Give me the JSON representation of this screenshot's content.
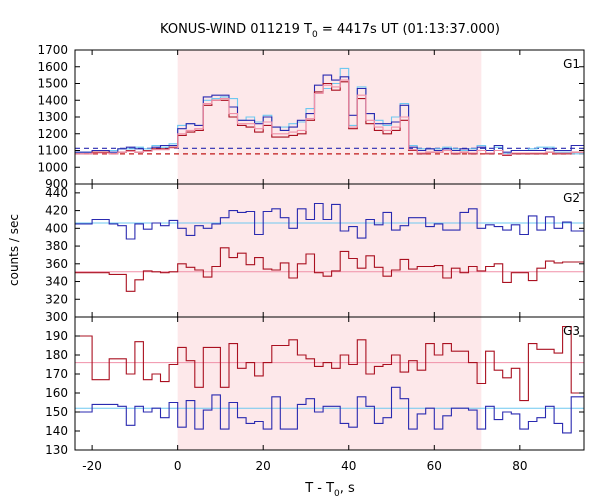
{
  "chart_data": {
    "type": "line",
    "title": "KONUS-WIND 011219 T",
    "title_sub": "0",
    "title_rest": " = 4417s UT (01:13:37.000)",
    "xlabel": "T - T",
    "xlabel_sub": "0",
    "xlabel_rest": ", s",
    "ylabel": "counts / sec",
    "xlim": [
      -24,
      95
    ],
    "xticks": [
      -20,
      0,
      20,
      40,
      60,
      80
    ],
    "xtick_labels": [
      "-20",
      "0",
      "20",
      "40",
      "60",
      "80"
    ],
    "shaded_interval": [
      0,
      71
    ],
    "colors": {
      "blue": "#2a2ab0",
      "red": "#aa1020",
      "light_blue": "#6ec8f0",
      "pink": "#f090a8",
      "shade": "#fde8ea",
      "g1_blue_bg": "#2a2ab0",
      "g1_red_bg": "#c01818"
    },
    "step_x": [
      -24,
      -20,
      -16,
      -14,
      -12,
      -10,
      -8,
      -6,
      -4,
      -2,
      0,
      2,
      4,
      6,
      8,
      10,
      12,
      14,
      16,
      18,
      20,
      22,
      24,
      26,
      28,
      30,
      32,
      34,
      36,
      38,
      40,
      42,
      44,
      46,
      48,
      50,
      52,
      54,
      56,
      58,
      60,
      62,
      64,
      66,
      68,
      70,
      72,
      74,
      76,
      78,
      80,
      82,
      84,
      86,
      88,
      90,
      92,
      95
    ],
    "panels": [
      {
        "label": "G1",
        "ylim": [
          900,
          1700
        ],
        "yticks": [
          900,
          1000,
          1100,
          1200,
          1300,
          1400,
          1500,
          1600,
          1700
        ],
        "ytick_labels": [
          "900",
          "1000",
          "1100",
          "1200",
          "1300",
          "1400",
          "1500",
          "1600",
          "1700"
        ],
        "series": [
          {
            "color": "light_blue",
            "values": [
              1090,
              1085,
              1100,
              1110,
              1110,
              1120,
              1110,
              1130,
              1120,
              1140,
              1250,
              1260,
              1250,
              1400,
              1410,
              1420,
              1410,
              1280,
              1300,
              1270,
              1310,
              1240,
              1240,
              1260,
              1270,
              1350,
              1450,
              1470,
              1500,
              1590,
              1250,
              1480,
              1320,
              1280,
              1250,
              1300,
              1380,
              1130,
              1110,
              1110,
              1110,
              1120,
              1110,
              1100,
              1110,
              1130,
              1100,
              1120,
              1080,
              1100,
              1100,
              1110,
              1120,
              1120,
              1090,
              1090,
              1080
            ]
          },
          {
            "color": "blue",
            "values": [
              1090,
              1100,
              1090,
              1110,
              1120,
              1110,
              1100,
              1120,
              1130,
              1130,
              1230,
              1260,
              1250,
              1420,
              1430,
              1430,
              1360,
              1280,
              1280,
              1260,
              1300,
              1240,
              1220,
              1240,
              1280,
              1320,
              1490,
              1550,
              1520,
              1540,
              1310,
              1470,
              1320,
              1260,
              1260,
              1270,
              1370,
              1120,
              1100,
              1110,
              1100,
              1110,
              1100,
              1110,
              1100,
              1120,
              1100,
              1130,
              1090,
              1100,
              1100,
              1100,
              1100,
              1110,
              1100,
              1100,
              1130
            ]
          },
          {
            "color": "red",
            "values": [
              1080,
              1090,
              1080,
              1090,
              1100,
              1090,
              1100,
              1110,
              1110,
              1120,
              1190,
              1210,
              1220,
              1370,
              1400,
              1400,
              1300,
              1250,
              1240,
              1210,
              1250,
              1180,
              1180,
              1190,
              1200,
              1280,
              1450,
              1500,
              1460,
              1510,
              1230,
              1410,
              1260,
              1220,
              1200,
              1220,
              1280,
              1100,
              1080,
              1090,
              1090,
              1100,
              1080,
              1090,
              1080,
              1100,
              1080,
              1100,
              1070,
              1080,
              1080,
              1080,
              1080,
              1090,
              1080,
              1080,
              1090
            ]
          },
          {
            "color": "pink",
            "values": [
              1080,
              1085,
              1080,
              1090,
              1095,
              1090,
              1095,
              1105,
              1105,
              1115,
              1200,
              1220,
              1230,
              1380,
              1400,
              1410,
              1320,
              1260,
              1260,
              1230,
              1270,
              1200,
              1200,
              1210,
              1220,
              1290,
              1440,
              1490,
              1480,
              1520,
              1240,
              1430,
              1280,
              1240,
              1220,
              1240,
              1300,
              1105,
              1085,
              1090,
              1090,
              1100,
              1085,
              1090,
              1085,
              1100,
              1085,
              1100,
              1075,
              1085,
              1085,
              1085,
              1085,
              1090,
              1085,
              1085,
              1090
            ]
          }
        ],
        "baselines": [
          {
            "color": "g1_blue_bg",
            "y": 1113,
            "dashed": true
          },
          {
            "color": "g1_red_bg",
            "y": 1080,
            "dashed": true
          }
        ]
      },
      {
        "label": "G2",
        "ylim": [
          300,
          450
        ],
        "yticks": [
          300,
          320,
          340,
          360,
          380,
          400,
          420,
          440
        ],
        "ytick_labels": [
          "300",
          "320",
          "340",
          "360",
          "380",
          "400",
          "420",
          "440"
        ],
        "series": [
          {
            "color": "blue",
            "values": [
              405,
              410,
              405,
              403,
              388,
              405,
              399,
              406,
              403,
              409,
              400,
              392,
              403,
              400,
              405,
              412,
              420,
              418,
              419,
              393,
              419,
              422,
              412,
              400,
              422,
              410,
              428,
              410,
              427,
              397,
              402,
              389,
              410,
              404,
              418,
              398,
              403,
              412,
              412,
              402,
              405,
              398,
              398,
              418,
              422,
              400,
              404,
              402,
              398,
              404,
              393,
              414,
              398,
              413,
              400,
              407,
              397
            ]
          },
          {
            "color": "red",
            "values": [
              350,
              350,
              348,
              348,
              329,
              342,
              352,
              351,
              350,
              351,
              360,
              356,
              353,
              345,
              357,
              378,
              367,
              372,
              359,
              367,
              354,
              353,
              361,
              344,
              360,
              371,
              350,
              346,
              352,
              374,
              366,
              355,
              369,
              356,
              346,
              353,
              365,
              354,
              357,
              357,
              358,
              344,
              355,
              350,
              357,
              352,
              357,
              360,
              339,
              350,
              350,
              341,
              355,
              363,
              361,
              362,
              362
            ]
          },
          {
            "color": "light_blue",
            "values": [],
            "flat": 406
          },
          {
            "color": "pink",
            "values": [],
            "flat": 351
          }
        ],
        "baselines": []
      },
      {
        "label": "G3",
        "ylim": [
          130,
          200
        ],
        "yticks": [
          130,
          140,
          150,
          160,
          170,
          180,
          190
        ],
        "ytick_labels": [
          "130",
          "140",
          "150",
          "160",
          "170",
          "180",
          "190"
        ],
        "series": [
          {
            "color": "red",
            "values": [
              190,
              167,
              178,
              178,
              170,
              187,
              167,
              170,
              166,
              175,
              184,
              177,
              163,
              184,
              184,
              163,
              186,
              173,
              176,
              169,
              176,
              185,
              185,
              188,
              180,
              178,
              174,
              176,
              173,
              180,
              175,
              188,
              170,
              174,
              175,
              180,
              171,
              177,
              172,
              186,
              180,
              186,
              182,
              182,
              176,
              165,
              182,
              172,
              168,
              173,
              156,
              186,
              183,
              183,
              181,
              195,
              160
            ]
          },
          {
            "color": "blue",
            "values": [
              150,
              154,
              154,
              153,
              143,
              153,
              150,
              152,
              147,
              155,
              142,
              156,
              141,
              151,
              159,
              141,
              155,
              147,
              144,
              145,
              141,
              158,
              141,
              141,
              154,
              157,
              150,
              153,
              153,
              144,
              142,
              158,
              153,
              144,
              147,
              163,
              157,
              141,
              149,
              152,
              141,
              148,
              152,
              152,
              151,
              141,
              153,
              146,
              150,
              149,
              141,
              145,
              147,
              153,
              144,
              139,
              158
            ]
          },
          {
            "color": "pink",
            "values": [],
            "flat": 176
          },
          {
            "color": "light_blue",
            "values": [],
            "flat": 152
          }
        ],
        "baselines": []
      }
    ]
  }
}
